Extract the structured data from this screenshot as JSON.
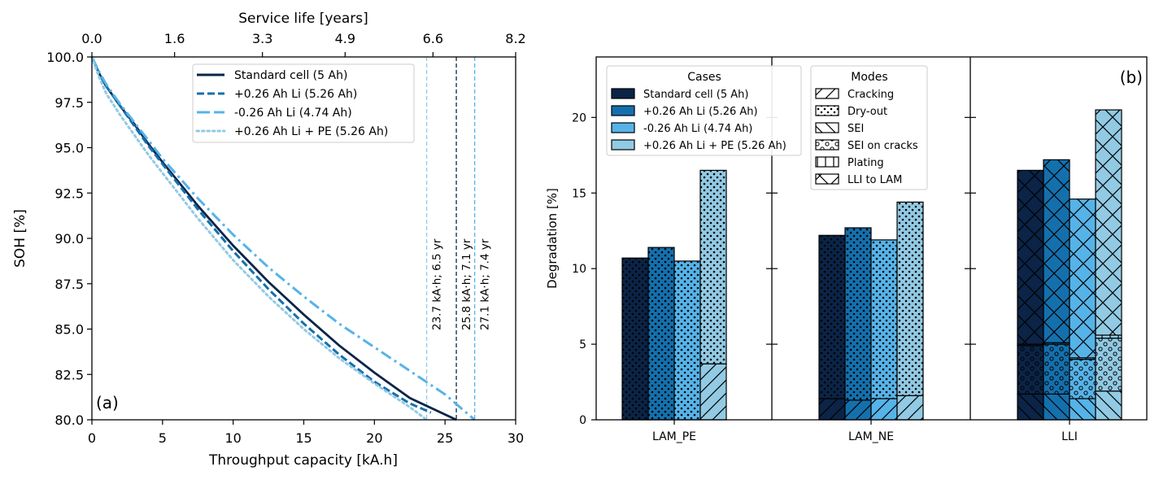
{
  "colors": {
    "standard": "#0b2447",
    "plus": "#1470ad",
    "minus": "#56b3e8",
    "plus_pe": "#92cae4",
    "axis": "#000000"
  },
  "chart_data": [
    {
      "type": "line",
      "panel_label": "(a)",
      "xlabel": "Throughput capacity [kA.h]",
      "ylabel": "SOH [%]",
      "secondary_xlabel": "Service life [years]",
      "xlim": [
        0,
        30
      ],
      "ylim": [
        80,
        100
      ],
      "x_ticks": [
        "0",
        "5",
        "10",
        "15",
        "20",
        "25",
        "30"
      ],
      "y_ticks": [
        "80.0",
        "82.5",
        "85.0",
        "87.5",
        "90.0",
        "92.5",
        "95.0",
        "97.5",
        "100.0"
      ],
      "secondary_x_ticks": [
        "0.0",
        "1.6",
        "3.3",
        "4.9",
        "6.6",
        "8.2"
      ],
      "legend_position": "top-right",
      "series": [
        {
          "name": "Standard cell (5 Ah)",
          "color_key": "standard",
          "dash": "solid",
          "points": [
            [
              0,
              100
            ],
            [
              0.5,
              99.1
            ],
            [
              1,
              98.4
            ],
            [
              2,
              97.3
            ],
            [
              3,
              96.3
            ],
            [
              4,
              95.2
            ],
            [
              5,
              94.2
            ],
            [
              7.5,
              91.8
            ],
            [
              10,
              89.6
            ],
            [
              12.5,
              87.6
            ],
            [
              15,
              85.8
            ],
            [
              17.5,
              84.1
            ],
            [
              20,
              82.6
            ],
            [
              22.5,
              81.2
            ],
            [
              25.8,
              80
            ]
          ]
        },
        {
          "name": "+0.26 Ah Li (5.26 Ah)",
          "color_key": "plus",
          "dash": "dashed",
          "points": [
            [
              0,
              100
            ],
            [
              0.5,
              99.1
            ],
            [
              1,
              98.4
            ],
            [
              2,
              97.3
            ],
            [
              3,
              96.2
            ],
            [
              4,
              95.1
            ],
            [
              5,
              94.1
            ],
            [
              7.5,
              91.6
            ],
            [
              10,
              89.3
            ],
            [
              12.5,
              87.2
            ],
            [
              15,
              85.3
            ],
            [
              17.5,
              83.6
            ],
            [
              20,
              82.1
            ],
            [
              22.5,
              80.9
            ],
            [
              24,
              80.4
            ]
          ]
        },
        {
          "name": "-0.26 Ah Li (4.74 Ah)",
          "color_key": "minus",
          "dash": "dashdot",
          "points": [
            [
              0,
              100
            ],
            [
              0.5,
              99.2
            ],
            [
              1,
              98.5
            ],
            [
              2,
              97.4
            ],
            [
              3,
              96.4
            ],
            [
              4,
              95.4
            ],
            [
              5,
              94.4
            ],
            [
              7.5,
              92.2
            ],
            [
              10,
              90.2
            ],
            [
              12.5,
              88.4
            ],
            [
              15,
              86.8
            ],
            [
              17.5,
              85.3
            ],
            [
              20,
              84
            ],
            [
              22.5,
              82.7
            ],
            [
              25,
              81.4
            ],
            [
              27.1,
              80
            ]
          ]
        },
        {
          "name": "+0.26 Ah Li + PE (5.26 Ah)",
          "color_key": "plus_pe",
          "dash": "dotted",
          "points": [
            [
              0,
              100
            ],
            [
              0.5,
              98.9
            ],
            [
              1,
              98
            ],
            [
              2,
              96.8
            ],
            [
              3,
              95.7
            ],
            [
              4,
              94.6
            ],
            [
              5,
              93.6
            ],
            [
              7.5,
              91.1
            ],
            [
              10,
              88.8
            ],
            [
              12.5,
              86.8
            ],
            [
              15,
              85
            ],
            [
              17.5,
              83.4
            ],
            [
              20,
              82
            ],
            [
              22.5,
              80.7
            ],
            [
              23.7,
              80
            ]
          ]
        }
      ],
      "vertical_markers": [
        {
          "x": 23.7,
          "label": "23.7 kA·h; 6.5 yr",
          "color_key": "plus_pe"
        },
        {
          "x": 25.8,
          "label": "25.8 kA·h; 7.1 yr",
          "color_key": "standard"
        },
        {
          "x": 27.1,
          "label": "27.1 kA·h; 7.4 yr",
          "color_key": "minus"
        }
      ]
    },
    {
      "type": "bar",
      "stacked": true,
      "panel_label": "(b)",
      "ylabel": "Degradation [%]",
      "ylim": [
        0,
        24
      ],
      "y_ticks": [
        "0",
        "5",
        "10",
        "15",
        "20"
      ],
      "categories": [
        "LAM_PE",
        "LAM_NE",
        "LLI"
      ],
      "legend_cases_title": "Cases",
      "legend_modes_title": "Modes",
      "modes": [
        {
          "name": "Cracking",
          "pattern": "fslash"
        },
        {
          "name": "Dry-out",
          "pattern": "dots"
        },
        {
          "name": "SEI",
          "pattern": "bslash"
        },
        {
          "name": "SEI on cracks",
          "pattern": "circles"
        },
        {
          "name": "Plating",
          "pattern": "vlines"
        },
        {
          "name": "LLI to LAM",
          "pattern": "cross"
        }
      ],
      "series": [
        {
          "name": "Standard cell (5 Ah)",
          "color_key": "standard",
          "stacks": [
            [
              {
                "mode": "Dry-out",
                "value": 10.7
              }
            ],
            [
              {
                "mode": "Cracking",
                "value": 1.4
              },
              {
                "mode": "Dry-out",
                "value": 10.8
              }
            ],
            [
              {
                "mode": "SEI",
                "value": 1.7
              },
              {
                "mode": "SEI on cracks",
                "value": 3.2
              },
              {
                "mode": "Plating",
                "value": 0.1
              },
              {
                "mode": "LLI to LAM",
                "value": 11.5
              }
            ]
          ]
        },
        {
          "name": "+0.26 Ah Li (5.26 Ah)",
          "color_key": "plus",
          "stacks": [
            [
              {
                "mode": "Dry-out",
                "value": 11.4
              }
            ],
            [
              {
                "mode": "Cracking",
                "value": 1.3
              },
              {
                "mode": "Dry-out",
                "value": 11.4
              }
            ],
            [
              {
                "mode": "SEI",
                "value": 1.7
              },
              {
                "mode": "SEI on cracks",
                "value": 3.3
              },
              {
                "mode": "Plating",
                "value": 0.1
              },
              {
                "mode": "LLI to LAM",
                "value": 12.1
              }
            ]
          ]
        },
        {
          "name": "-0.26 Ah Li (4.74 Ah)",
          "color_key": "minus",
          "stacks": [
            [
              {
                "mode": "Dry-out",
                "value": 10.5
              }
            ],
            [
              {
                "mode": "Cracking",
                "value": 1.4
              },
              {
                "mode": "Dry-out",
                "value": 10.5
              }
            ],
            [
              {
                "mode": "SEI",
                "value": 1.4
              },
              {
                "mode": "SEI on cracks",
                "value": 2.6
              },
              {
                "mode": "Plating",
                "value": 0.1
              },
              {
                "mode": "LLI to LAM",
                "value": 10.5
              }
            ]
          ]
        },
        {
          "name": "+0.26 Ah Li + PE (5.26 Ah)",
          "color_key": "plus_pe",
          "stacks": [
            [
              {
                "mode": "Cracking",
                "value": 3.7
              },
              {
                "mode": "Dry-out",
                "value": 12.8
              }
            ],
            [
              {
                "mode": "Cracking",
                "value": 1.6
              },
              {
                "mode": "Dry-out",
                "value": 12.8
              }
            ],
            [
              {
                "mode": "SEI",
                "value": 1.9
              },
              {
                "mode": "SEI on cracks",
                "value": 3.5
              },
              {
                "mode": "Plating",
                "value": 0.2
              },
              {
                "mode": "LLI to LAM",
                "value": 14.9
              }
            ]
          ]
        }
      ]
    }
  ]
}
